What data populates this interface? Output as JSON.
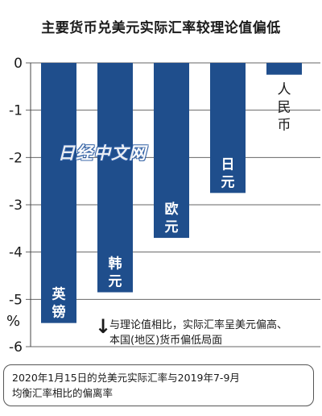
{
  "chart_data": {
    "type": "bar",
    "title": "主要货币兑美元实际汇率较理论值偏低",
    "categories": [
      "英镑",
      "韩元",
      "欧元",
      "日元",
      "人民币"
    ],
    "values": [
      -5.5,
      -4.85,
      -3.7,
      -2.75,
      -0.25
    ],
    "ylim": [
      -6,
      0
    ],
    "yticks": [
      "0",
      "-1",
      "-2",
      "-3",
      "-4",
      "-5",
      "-6"
    ],
    "ylabel": "%",
    "grid": true,
    "bar_color": "#1f4e8c"
  },
  "watermark": "日经中文网",
  "note": {
    "arrow": "↓",
    "text_line1": "与理论值相比，实际汇率呈美元偏高、",
    "text_line2": "本国(地区)货币偏低局面"
  },
  "footer": {
    "line1": "2020年1月15日的兑美元实际汇率与2019年7-9月",
    "line2": "均衡汇率相比的偏离率"
  }
}
